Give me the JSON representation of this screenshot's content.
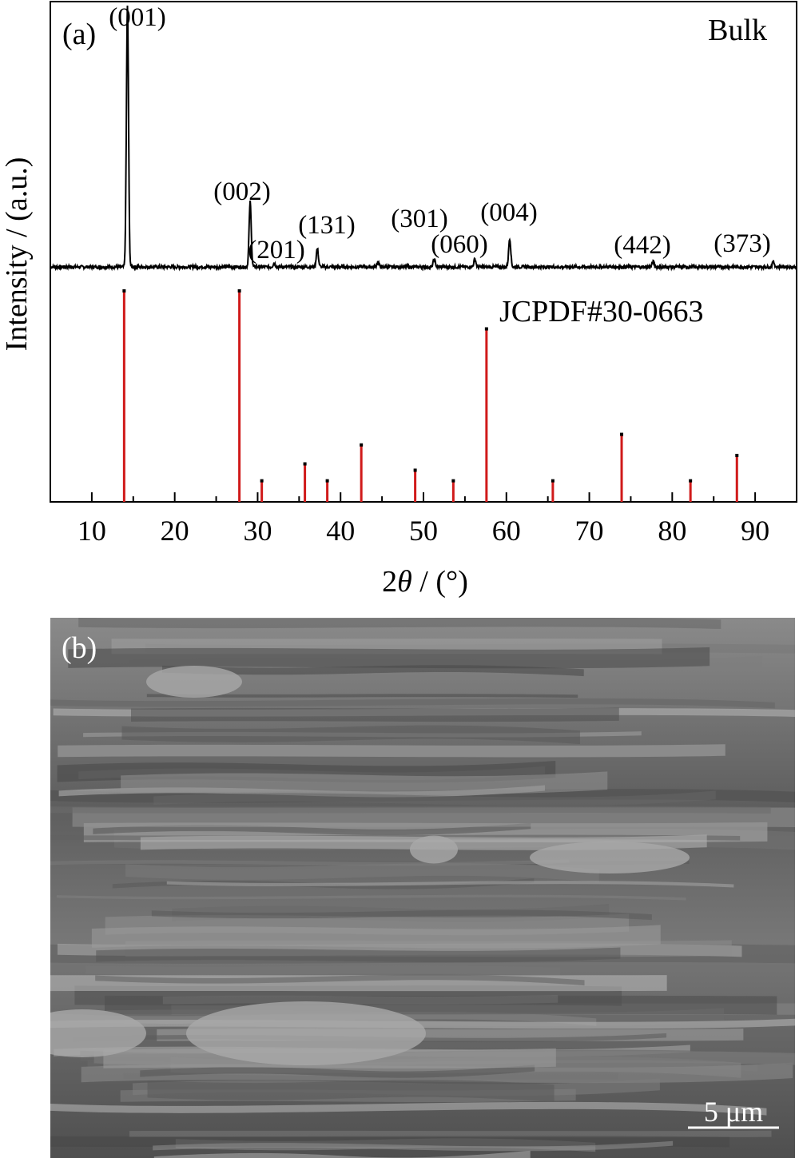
{
  "panel_a": {
    "label": "(a)",
    "bulk_label": "Bulk",
    "ref_label": "JCPDF#30-0663"
  },
  "panel_b": {
    "label": "(b)",
    "scale_bar_label": "5 μm"
  },
  "colors": {
    "bulk_line": "#000000",
    "ref_sticks": "#d01a1a",
    "axis": "#000000"
  },
  "chart_data": {
    "type": "line",
    "xlabel_prefix": "2",
    "xlabel_symbol": "θ",
    "xlabel_suffix": " / (°)",
    "ylabel": "Intensity / (a.u.)",
    "xlim": [
      5,
      95
    ],
    "x_ticks": [
      10,
      20,
      30,
      40,
      50,
      60,
      70,
      80,
      90
    ],
    "grid": false,
    "series": [
      {
        "name": "Bulk",
        "kind": "xrd-pattern",
        "peaks": [
          {
            "x": 14.3,
            "intensity": 1.0,
            "label": "(001)"
          },
          {
            "x": 29.1,
            "intensity": 0.25,
            "label": "(002)"
          },
          {
            "x": 32.0,
            "intensity": 0.015,
            "label": "(201)"
          },
          {
            "x": 37.2,
            "intensity": 0.07,
            "label": "(131)"
          },
          {
            "x": 44.5,
            "intensity": 0.02,
            "label": ""
          },
          {
            "x": 51.3,
            "intensity": 0.03,
            "label": "(301)"
          },
          {
            "x": 56.2,
            "intensity": 0.03,
            "label": "(060)"
          },
          {
            "x": 60.4,
            "intensity": 0.11,
            "label": "(004)"
          },
          {
            "x": 77.7,
            "intensity": 0.02,
            "label": "(442)"
          },
          {
            "x": 92.2,
            "intensity": 0.02,
            "label": "(373)"
          }
        ]
      },
      {
        "name": "JCPDF#30-0663",
        "kind": "reference-sticks",
        "peaks": [
          {
            "x": 13.9,
            "intensity": 1.0
          },
          {
            "x": 27.8,
            "intensity": 1.0
          },
          {
            "x": 30.5,
            "intensity": 0.1
          },
          {
            "x": 35.7,
            "intensity": 0.18
          },
          {
            "x": 38.4,
            "intensity": 0.1
          },
          {
            "x": 42.5,
            "intensity": 0.27
          },
          {
            "x": 49.0,
            "intensity": 0.15
          },
          {
            "x": 53.6,
            "intensity": 0.1
          },
          {
            "x": 57.6,
            "intensity": 0.82
          },
          {
            "x": 65.6,
            "intensity": 0.1
          },
          {
            "x": 73.9,
            "intensity": 0.32
          },
          {
            "x": 82.2,
            "intensity": 0.1
          },
          {
            "x": 87.8,
            "intensity": 0.22
          }
        ]
      }
    ]
  }
}
